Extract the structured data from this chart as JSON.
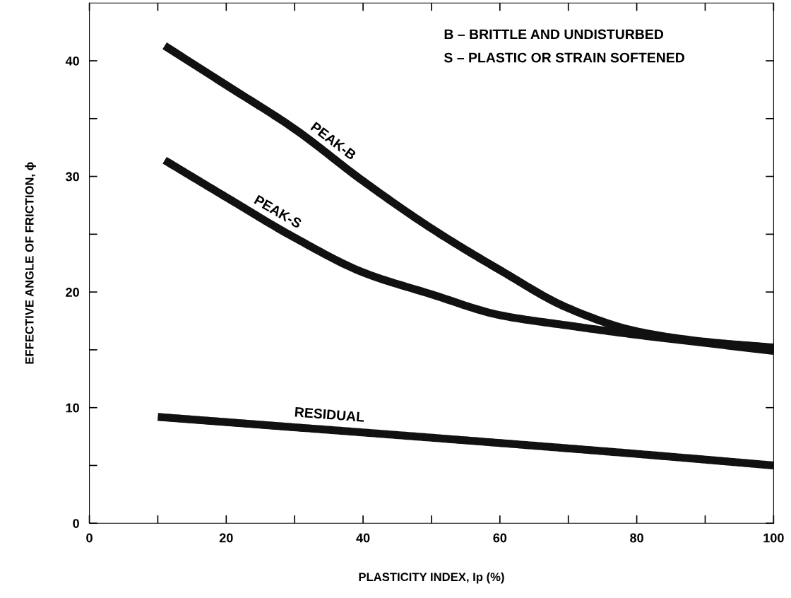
{
  "chart_data": {
    "type": "line",
    "xlabel": "PLASTICITY INDEX, Ip (%)",
    "ylabel": "EFFECTIVE ANGLE OF FRICTION, ϕ",
    "xlim": [
      0,
      100
    ],
    "ylim": [
      0,
      45
    ],
    "xticks": [
      0,
      {
        "value": 10,
        "label": null
      },
      20,
      {
        "value": 30,
        "label": null
      },
      40,
      {
        "value": 50,
        "label": null
      },
      60,
      {
        "value": 70,
        "label": null
      },
      80,
      {
        "value": 90,
        "label": null
      },
      100
    ],
    "yticks": [
      0,
      {
        "value": 5,
        "label": null
      },
      10,
      {
        "value": 15,
        "label": null
      },
      20,
      {
        "value": 25,
        "label": null
      },
      30,
      {
        "value": 35,
        "label": null
      },
      40
    ],
    "grid": false,
    "marker": "none",
    "line_style": "solid",
    "series": [
      {
        "name": "PEAK-B",
        "color": "#111111",
        "x": [
          11,
          20,
          30,
          40,
          50,
          60,
          70,
          80,
          90,
          100
        ],
        "values": [
          41.3,
          37.9,
          34.1,
          29.6,
          25.5,
          21.9,
          18.6,
          16.6,
          15.7,
          15.2
        ]
      },
      {
        "name": "PEAK-S",
        "color": "#111111",
        "x": [
          11,
          20,
          30,
          40,
          50,
          60,
          70,
          80,
          90,
          100
        ],
        "values": [
          31.4,
          28.2,
          24.7,
          21.7,
          19.8,
          18.0,
          17.1,
          16.3,
          15.6,
          14.9
        ]
      },
      {
        "name": "RESIDUAL",
        "color": "#111111",
        "x": [
          10,
          30,
          50,
          80,
          100
        ],
        "values": [
          9.2,
          8.3,
          7.4,
          6.0,
          5.0
        ]
      }
    ],
    "annotations": [
      "B – BRITTLE AND UNDISTURBED",
      "S – PLASTIC OR STRAIN SOFTENED"
    ]
  }
}
